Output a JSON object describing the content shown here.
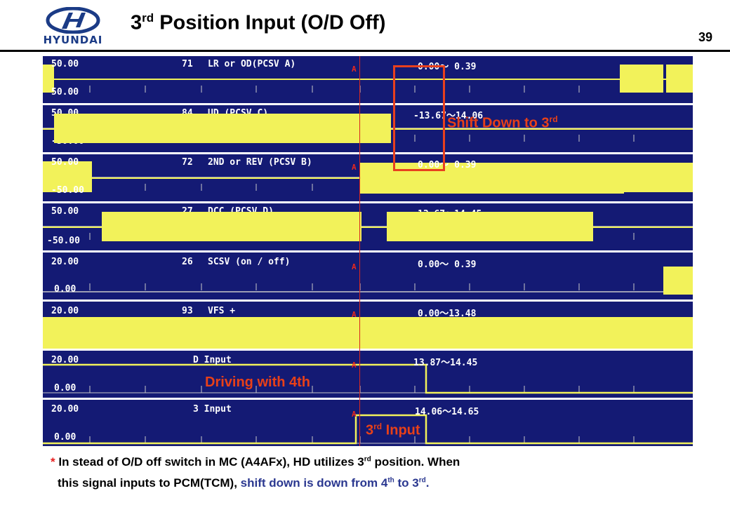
{
  "header": {
    "logo_text": "HYUNDAI",
    "title_prefix": "3",
    "title_sup": "rd",
    "title_rest": " Position Input (O/D Off)",
    "page_number": "39"
  },
  "scope": {
    "panels": [
      {
        "top_scale": "50.00",
        "bottom_scale": "50.00",
        "channel": "71",
        "name": "LR or OD(PCSV A)",
        "range": "0.00～ 0.39"
      },
      {
        "top_scale": "50.00",
        "bottom_scale": "-50.00",
        "channel": "84",
        "name": "UD (PCSV C)",
        "range": "-13.67～14.06"
      },
      {
        "top_scale": "50.00",
        "bottom_scale": "-50.00",
        "channel": "72",
        "name": "2ND or REV (PCSV B)",
        "range": "0.00～ 0.39"
      },
      {
        "top_scale": "50.00",
        "bottom_scale": "-50.00",
        "channel": "27",
        "name": "DCC (PCSV D)",
        "range": "13.67～14.45"
      },
      {
        "top_scale": "20.00",
        "bottom_scale": "0.00",
        "channel": "26",
        "name": "SCSV (on / off)",
        "range": "0.00～ 0.39"
      },
      {
        "top_scale": "20.00",
        "bottom_scale": "",
        "channel": "93",
        "name": "VFS +",
        "range": "0.00～13.48"
      },
      {
        "top_scale": "20.00",
        "bottom_scale": "0.00",
        "channel": "",
        "name": "D Input",
        "range": "13.87～14.45"
      },
      {
        "top_scale": "20.00",
        "bottom_scale": "0.00",
        "channel": "",
        "name": "3 Input",
        "range": "14.06～14.65"
      }
    ],
    "cursor_marker": "A"
  },
  "annotations": {
    "shift_down_text": "Shift Down to 3",
    "shift_down_sup": "rd",
    "driving_text": "Driving with 4th",
    "input_prefix": "3",
    "input_sup": "rd",
    "input_text": " Input"
  },
  "notes": {
    "asterisk": "*",
    "line1_a": " In stead of O/D off switch in MC (A4AFx), HD utilizes 3",
    "line1_sup": "rd",
    "line1_b": " position. When",
    "line2_a": "this signal inputs to PCM(TCM), ",
    "line2_blue_a": "shift down is down from 4",
    "line2_sup1": "th",
    "line2_blue_b": " to 3",
    "line2_sup2": "rd",
    "line2_end": "."
  },
  "colors": {
    "panel_bg": "#141a74",
    "signal": "#f2f25a",
    "annotation": "#e84018",
    "note_blue": "#2b3890"
  }
}
